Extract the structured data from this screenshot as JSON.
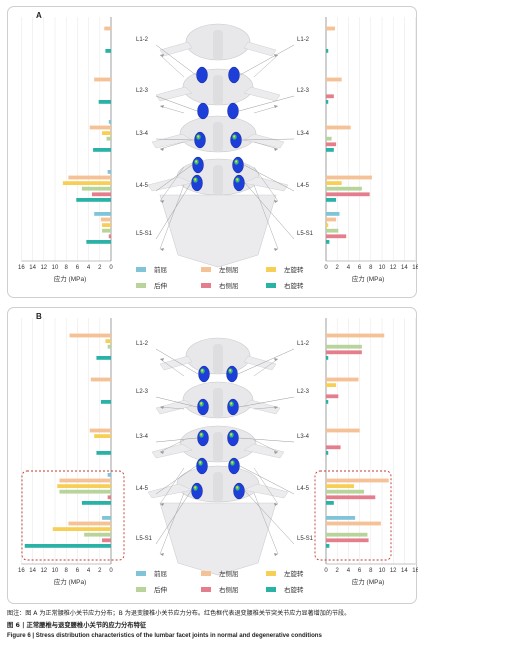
{
  "colors": {
    "flexion": "#7fc4d9",
    "extension": "#b9d49a",
    "left_bending": "#f5c196",
    "right_bending": "#e47e8c",
    "left_rotation": "#f7cf57",
    "right_rotation": "#2bb2a6",
    "highlight_box": "#c0392b",
    "vertebra_fill": "#e8e8ea",
    "facet_blue": "#1d3ed8"
  },
  "legend": {
    "flexion": "前屈",
    "left_bending": "左侧屈",
    "left_rotation": "左旋转",
    "extension": "后伸",
    "right_bending": "右侧屈",
    "right_rotation": "右旋转"
  },
  "axis": {
    "left_ticks": [
      "16",
      "14",
      "12",
      "10",
      "8",
      "6",
      "4",
      "2",
      "0"
    ],
    "right_ticks": [
      "0",
      "2",
      "4",
      "6",
      "8",
      "10",
      "12",
      "14",
      "16"
    ],
    "xlabel": "应力 (MPa)"
  },
  "level_labels": [
    "L1-2",
    "L2-3",
    "L3-4",
    "L4-5",
    "L5-S1"
  ],
  "panels": [
    {
      "letter": "A"
    },
    {
      "letter": "B"
    }
  ],
  "chart_data": [
    {
      "type": "bar",
      "panel": "A",
      "side": "left",
      "categories": [
        "L1-2",
        "L2-3",
        "L3-4",
        "L4-5",
        "L5-S1"
      ],
      "xlabel": "应力 (MPa)",
      "xlim": [
        16,
        0
      ],
      "series": [
        {
          "name": "前屈",
          "values": [
            0,
            0,
            0.4,
            0.6,
            3.0
          ]
        },
        {
          "name": "左侧屈",
          "values": [
            1.2,
            3.0,
            3.8,
            7.6,
            1.8
          ]
        },
        {
          "name": "左旋转",
          "values": [
            0,
            0,
            1.6,
            8.6,
            1.6
          ]
        },
        {
          "name": "后伸",
          "values": [
            0,
            0,
            0.8,
            5.2,
            1.6
          ]
        },
        {
          "name": "右侧屈",
          "values": [
            0,
            0,
            0,
            3.4,
            0.4
          ]
        },
        {
          "name": "右旋转",
          "values": [
            1.0,
            2.2,
            3.2,
            6.2,
            4.4
          ]
        }
      ]
    },
    {
      "type": "bar",
      "panel": "A",
      "side": "right",
      "categories": [
        "L1-2",
        "L2-3",
        "L3-4",
        "L4-5",
        "L5-S1"
      ],
      "xlabel": "应力 (MPa)",
      "xlim": [
        0,
        16
      ],
      "series": [
        {
          "name": "前屈",
          "values": [
            0,
            0,
            0,
            0,
            2.4
          ]
        },
        {
          "name": "左侧屈",
          "values": [
            1.6,
            2.8,
            4.4,
            8.2,
            1.8
          ]
        },
        {
          "name": "左旋转",
          "values": [
            0,
            0,
            0,
            2.8,
            0.4
          ]
        },
        {
          "name": "后伸",
          "values": [
            0,
            0,
            1.0,
            6.4,
            2.2
          ]
        },
        {
          "name": "右侧屈",
          "values": [
            0,
            1.4,
            1.8,
            7.8,
            3.6
          ]
        },
        {
          "name": "右旋转",
          "values": [
            0.4,
            0.4,
            1.4,
            1.8,
            0.6
          ]
        }
      ]
    },
    {
      "type": "bar",
      "panel": "B",
      "side": "left",
      "categories": [
        "L1-2",
        "L2-3",
        "L3-4",
        "L4-5",
        "L5-S1"
      ],
      "xlabel": "应力 (MPa)",
      "xlim": [
        16,
        0
      ],
      "series": [
        {
          "name": "前屈",
          "values": [
            0,
            0,
            0,
            0.6,
            1.6
          ]
        },
        {
          "name": "左侧屈",
          "values": [
            7.4,
            3.6,
            3.8,
            9.2,
            7.6
          ]
        },
        {
          "name": "左旋转",
          "values": [
            1.0,
            0,
            3.0,
            9.6,
            10.4
          ]
        },
        {
          "name": "后伸",
          "values": [
            0.6,
            0,
            0,
            9.2,
            4.8
          ]
        },
        {
          "name": "右侧屈",
          "values": [
            0,
            0,
            0,
            0.6,
            1.6
          ]
        },
        {
          "name": "右旋转",
          "values": [
            2.6,
            1.8,
            2.6,
            5.2,
            15.4
          ]
        }
      ]
    },
    {
      "type": "bar",
      "panel": "B",
      "side": "right",
      "categories": [
        "L1-2",
        "L2-3",
        "L3-4",
        "L4-5",
        "L5-S1"
      ],
      "xlabel": "应力 (MPa)",
      "xlim": [
        0,
        16
      ],
      "series": [
        {
          "name": "前屈",
          "values": [
            0,
            0,
            0,
            0,
            5.2
          ]
        },
        {
          "name": "左侧屈",
          "values": [
            10.4,
            5.8,
            6.0,
            11.2,
            9.8
          ]
        },
        {
          "name": "左旋转",
          "values": [
            0,
            1.8,
            0,
            5.0,
            0
          ]
        },
        {
          "name": "后伸",
          "values": [
            6.4,
            0,
            0,
            6.8,
            7.4
          ]
        },
        {
          "name": "右侧屈",
          "values": [
            6.4,
            2.2,
            2.6,
            8.8,
            7.6
          ]
        },
        {
          "name": "右旋转",
          "values": [
            0.4,
            0.4,
            0.4,
            1.4,
            0.6
          ]
        }
      ]
    }
  ],
  "captions": {
    "note": "图注：图 A 为正常腰椎小关节应力分布；B 为退变腰椎小关节应力分布。红色框代表退变腰椎关节突关节应力显著增加的节段。",
    "title_cn": "图 6 | 正常腰椎与退变腰椎小关节的应力分布特征",
    "title_en": "Figure 6 | Stress distribution characteristics of the lumbar facet joints in normal and degenerative conditions"
  }
}
